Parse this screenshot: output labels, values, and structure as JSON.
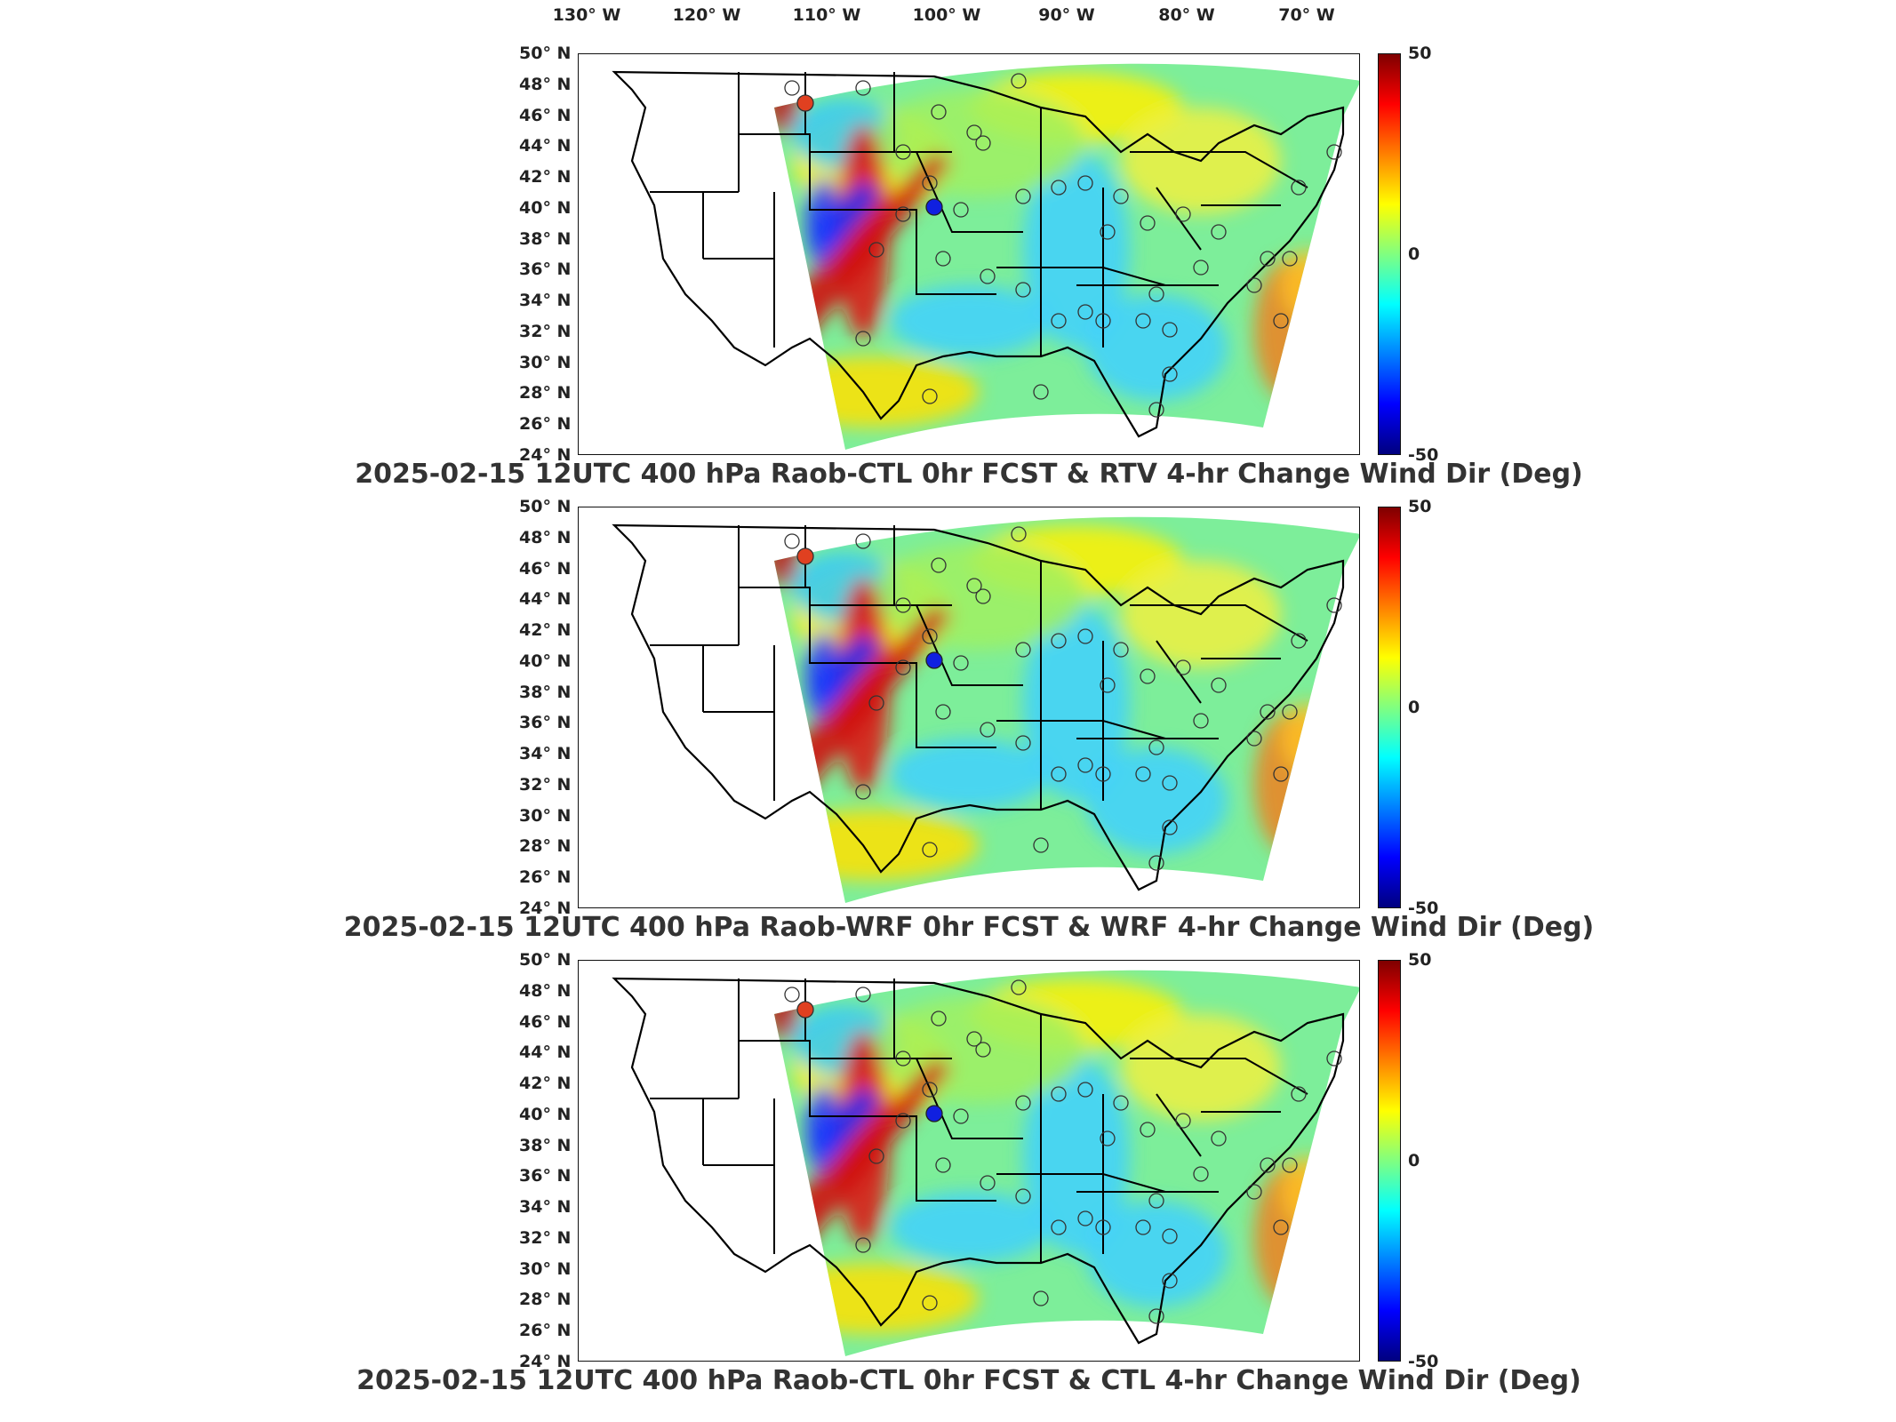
{
  "lon_labels": [
    {
      "lon": -130,
      "text": "130° W"
    },
    {
      "lon": -120,
      "text": "120° W"
    },
    {
      "lon": -110,
      "text": "110° W"
    },
    {
      "lon": -100,
      "text": "100° W"
    },
    {
      "lon": -90,
      "text": "90° W"
    },
    {
      "lon": -80,
      "text": "80° W"
    },
    {
      "lon": -70,
      "text": "70° W"
    }
  ],
  "lat_labels": [
    "50° N",
    "48° N",
    "46° N",
    "44° N",
    "42° N",
    "40° N",
    "38° N",
    "36° N",
    "34° N",
    "32° N",
    "30° N",
    "28° N",
    "26° N",
    "24° N"
  ],
  "colorbar": {
    "max": "50",
    "mid": "0",
    "min": "-50",
    "colors": [
      "#7f0000",
      "#ff0000",
      "#ff8000",
      "#ffff00",
      "#80ff80",
      "#00ffff",
      "#0080ff",
      "#0000ff",
      "#00007f"
    ]
  },
  "panels": [
    {
      "title": "2025-02-15 12UTC 400 hPa Raob-CTL 0hr FCST & RTV 4-hr Change Wind Dir (Deg)"
    },
    {
      "title": "2025-02-15 12UTC 400 hPa Raob-WRF 0hr FCST & WRF 4-hr Change Wind Dir (Deg)"
    },
    {
      "title": "2025-02-15 12UTC 400 hPa Raob-CTL 0hr FCST & CTL 4-hr Change Wind Dir (Deg)"
    }
  ],
  "markers": {
    "stations_count_note": "",
    "filled_blue_station": "filled-blue",
    "filled_red_station": "filled-red"
  }
}
